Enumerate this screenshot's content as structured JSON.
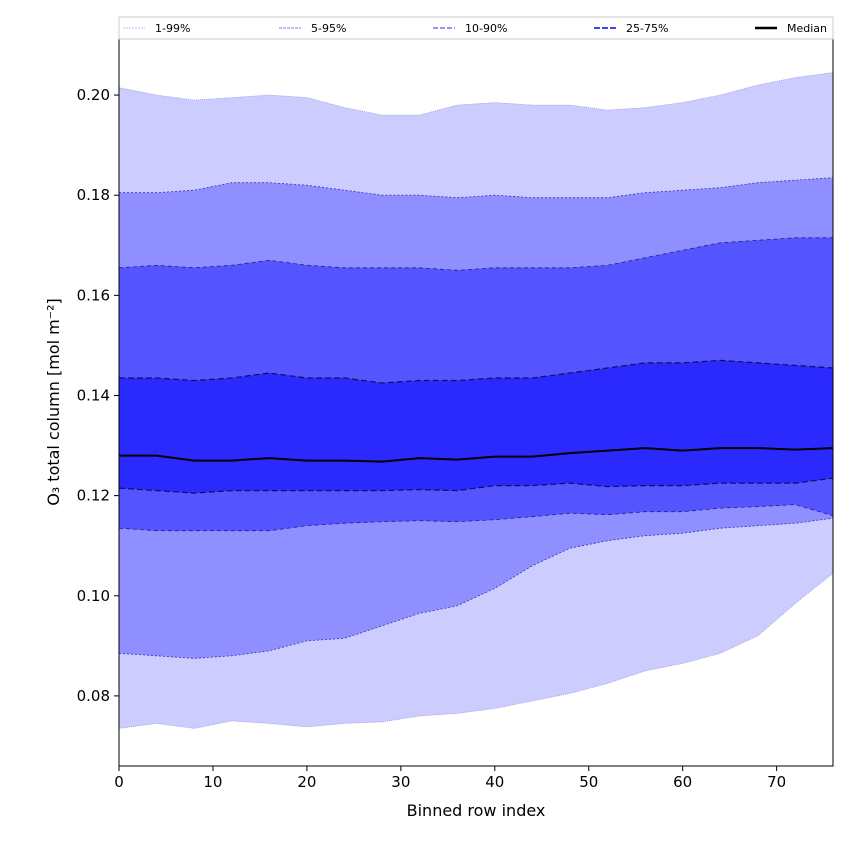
{
  "chart_data": {
    "type": "area",
    "title": "",
    "xlabel": "Binned row index",
    "ylabel": "O₃ total column [mol m⁻²]",
    "xlim": [
      0,
      76
    ],
    "ylim": [
      0.066,
      0.2112
    ],
    "xticks": [
      0,
      10,
      20,
      30,
      40,
      50,
      60,
      70
    ],
    "yticks": [
      0.08,
      0.1,
      0.12,
      0.14,
      0.16,
      0.18,
      0.2
    ],
    "ytick_labels": [
      "0.08",
      "0.10",
      "0.12",
      "0.14",
      "0.16",
      "0.18",
      "0.20"
    ],
    "grid": false,
    "legend_placement": "top (above plot, horizontal)",
    "x": [
      0,
      4,
      8,
      12,
      16,
      20,
      24,
      28,
      32,
      36,
      40,
      44,
      48,
      52,
      56,
      60,
      64,
      68,
      72,
      76
    ],
    "bands": [
      {
        "name": "1-99%",
        "color": "#ccccff",
        "lower": [
          0.0735,
          0.0745,
          0.0735,
          0.075,
          0.0745,
          0.0738,
          0.0745,
          0.0748,
          0.076,
          0.0765,
          0.0775,
          0.079,
          0.0805,
          0.0825,
          0.085,
          0.0865,
          0.0885,
          0.092,
          0.0985,
          0.1045
        ],
        "upper": [
          0.2015,
          0.2,
          0.199,
          0.1995,
          0.2,
          0.1995,
          0.1975,
          0.196,
          0.196,
          0.198,
          0.1985,
          0.198,
          0.198,
          0.197,
          0.1975,
          0.1985,
          0.2,
          0.202,
          0.2035,
          0.2045
        ]
      },
      {
        "name": "5-95%",
        "color": "#8f8fff",
        "lower": [
          0.0885,
          0.088,
          0.0875,
          0.088,
          0.089,
          0.091,
          0.0915,
          0.094,
          0.0965,
          0.098,
          0.1015,
          0.106,
          0.1095,
          0.111,
          0.112,
          0.1125,
          0.1135,
          0.114,
          0.1145,
          0.1155
        ],
        "upper": [
          0.1805,
          0.1805,
          0.181,
          0.1825,
          0.1825,
          0.182,
          0.181,
          0.18,
          0.18,
          0.1795,
          0.18,
          0.1795,
          0.1795,
          0.1795,
          0.1805,
          0.181,
          0.1815,
          0.1825,
          0.183,
          0.1835
        ]
      },
      {
        "name": "10-90%",
        "color": "#5555ff",
        "lower": [
          0.1135,
          0.113,
          0.113,
          0.113,
          0.113,
          0.114,
          0.1145,
          0.1148,
          0.115,
          0.1148,
          0.1152,
          0.1158,
          0.1165,
          0.1162,
          0.1168,
          0.1168,
          0.1175,
          0.1178,
          0.1182,
          0.116
        ],
        "upper": [
          0.1655,
          0.166,
          0.1655,
          0.166,
          0.167,
          0.166,
          0.1655,
          0.1655,
          0.1655,
          0.165,
          0.1655,
          0.1655,
          0.1655,
          0.166,
          0.1675,
          0.169,
          0.1705,
          0.171,
          0.1715,
          0.1715
        ]
      },
      {
        "name": "25-75%",
        "color": "#2a2aff",
        "lower": [
          0.1215,
          0.121,
          0.1205,
          0.121,
          0.121,
          0.121,
          0.121,
          0.121,
          0.1212,
          0.121,
          0.122,
          0.122,
          0.1225,
          0.1218,
          0.122,
          0.122,
          0.1225,
          0.1225,
          0.1225,
          0.1235
        ],
        "upper": [
          0.1435,
          0.1435,
          0.143,
          0.1435,
          0.1445,
          0.1435,
          0.1435,
          0.1425,
          0.143,
          0.143,
          0.1435,
          0.1435,
          0.1445,
          0.1455,
          0.1465,
          0.1465,
          0.147,
          0.1465,
          0.146,
          0.1455
        ]
      }
    ],
    "median": {
      "name": "Median",
      "color": "#000000",
      "values": [
        0.128,
        0.128,
        0.127,
        0.127,
        0.1275,
        0.127,
        0.127,
        0.1268,
        0.1275,
        0.1272,
        0.1278,
        0.1278,
        0.1285,
        0.129,
        0.1295,
        0.129,
        0.1295,
        0.1295,
        0.1292,
        0.1295
      ]
    },
    "legend": [
      {
        "label": "1-99%",
        "color": "#ccccff"
      },
      {
        "label": "5-95%",
        "color": "#8f8fff"
      },
      {
        "label": "10-90%",
        "color": "#5555ff"
      },
      {
        "label": "25-75%",
        "color": "#2a2aff"
      },
      {
        "label": "Median",
        "color": "#000000"
      }
    ]
  }
}
